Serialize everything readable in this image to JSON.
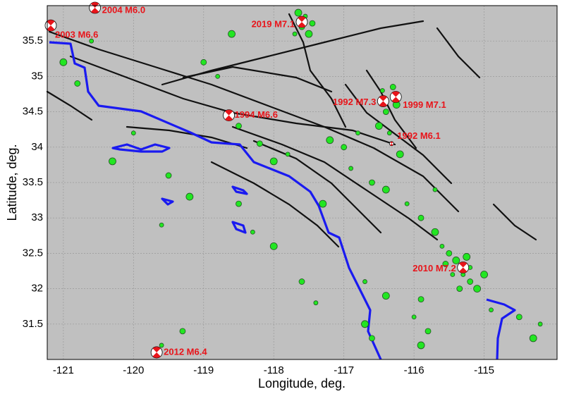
{
  "chart_data": {
    "type": "scatter",
    "xlabel": "Longitude, deg.",
    "ylabel": "Latitude, deg.",
    "xlim": [
      -121.23,
      -113.96
    ],
    "ylim": [
      31.0,
      36.0
    ],
    "xticks": [
      -121,
      -120,
      -119,
      -118,
      -117,
      -116,
      -115
    ],
    "yticks": [
      31.5,
      32,
      32.5,
      33,
      33.5,
      34,
      34.5,
      35,
      35.5
    ],
    "grid": true,
    "background": "#c0c0c0",
    "seismicity": {
      "color": "#22e622",
      "x": [
        -117.55,
        -117.6,
        -117.5,
        -117.7,
        -117.45,
        -117.65,
        -116.45,
        -116.4,
        -116.5,
        -116.35,
        -116.3,
        -116.25,
        -116.8,
        -117.0,
        -117.2,
        -116.9,
        -116.6,
        -116.4,
        -116.1,
        -115.9,
        -115.7,
        -115.6,
        -115.5,
        -115.4,
        -115.3,
        -115.2,
        -115.1,
        -115.2,
        -115.35,
        -115.0,
        -115.45,
        -115.55,
        -115.25,
        -114.9,
        -114.5,
        -114.3,
        -114.2,
        -115.8,
        -115.9,
        -116.0,
        -115.9,
        -116.4,
        -116.7,
        -116.6,
        -116.7,
        -117.4,
        -117.6,
        -118.0,
        -118.3,
        -118.5,
        -119.2,
        -119.6,
        -119.5,
        -120.3,
        -120.0,
        -120.8,
        -121.0,
        -120.6,
        -119.0,
        -118.6,
        -118.8,
        -118.5,
        -118.0,
        -117.8,
        -118.2,
        -117.3,
        -119.6,
        -119.3,
        -116.2,
        -115.7
      ],
      "y": [
        35.85,
        35.7,
        35.6,
        35.6,
        35.75,
        35.9,
        34.8,
        34.5,
        34.3,
        34.2,
        34.85,
        34.6,
        34.2,
        34.0,
        34.1,
        33.7,
        33.5,
        33.4,
        33.2,
        33.0,
        32.8,
        32.6,
        32.5,
        32.4,
        32.2,
        32.1,
        32.0,
        32.3,
        32.0,
        32.2,
        32.2,
        32.35,
        32.45,
        31.7,
        31.6,
        31.3,
        31.5,
        31.4,
        31.2,
        31.6,
        31.85,
        31.9,
        32.1,
        31.3,
        31.5,
        31.8,
        32.1,
        32.6,
        32.8,
        33.2,
        33.3,
        32.9,
        33.6,
        33.8,
        34.2,
        34.9,
        35.2,
        35.5,
        35.2,
        35.6,
        35.0,
        34.3,
        33.8,
        33.9,
        34.05,
        33.2,
        31.2,
        31.4,
        33.9,
        33.4
      ]
    },
    "mainshocks": [
      {
        "label": "2019 M7.1",
        "x": -117.6,
        "y": 35.77
      },
      {
        "label": "2004 M6.0",
        "x": -120.55,
        "y": 35.97
      },
      {
        "label": "2003 M6.6",
        "x": -121.18,
        "y": 35.72
      },
      {
        "label": "1992 M7.3",
        "x": -116.44,
        "y": 34.65
      },
      {
        "label": "1999 M7.1",
        "x": -116.26,
        "y": 34.71
      },
      {
        "label": "1994 M6.6",
        "x": -118.64,
        "y": 34.45
      },
      {
        "label": "1992 M6.1",
        "x": -116.32,
        "y": 34.05
      },
      {
        "label": "2010 M7.2",
        "x": -115.3,
        "y": 32.3
      },
      {
        "label": "2012 M6.4",
        "x": -119.67,
        "y": 31.1
      }
    ]
  }
}
